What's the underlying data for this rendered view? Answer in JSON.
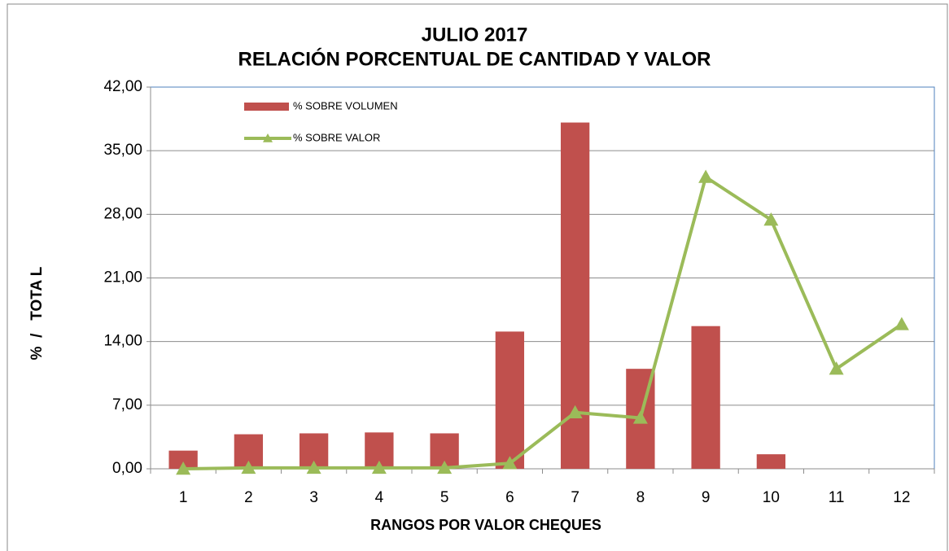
{
  "chart_data": {
    "type": "bar_line",
    "title": "JULIO  2017",
    "subtitle": "RELACIÓN PORCENTUAL DE CANTIDAD Y VALOR",
    "x_label": "RANGOS POR VALOR CHEQUES",
    "y_label": "%  /   TOTA L",
    "categories": [
      "1",
      "2",
      "3",
      "4",
      "5",
      "6",
      "7",
      "8",
      "9",
      "10",
      "11",
      "12"
    ],
    "series": [
      {
        "name": "% SOBRE VOLUMEN",
        "type": "bar",
        "color": "#c0504d",
        "values": [
          2.0,
          3.8,
          3.9,
          4.0,
          3.9,
          15.1,
          38.1,
          11.0,
          15.7,
          1.6,
          0,
          0
        ]
      },
      {
        "name": "% SOBRE VALOR",
        "type": "line",
        "color": "#9bbb59",
        "values": [
          0.0,
          0.1,
          0.1,
          0.1,
          0.1,
          0.6,
          6.2,
          5.6,
          32.1,
          27.4,
          11.0,
          15.9
        ]
      }
    ],
    "ylim": [
      0,
      42
    ],
    "yticks": [
      {
        "value": 0,
        "label": "0,00"
      },
      {
        "value": 7,
        "label": "7,00"
      },
      {
        "value": 14,
        "label": "14,00"
      },
      {
        "value": 21,
        "label": "21,00"
      },
      {
        "value": 28,
        "label": "28,00"
      },
      {
        "value": 35,
        "label": "35,00"
      },
      {
        "value": 42,
        "label": "42,00"
      }
    ],
    "grid": true,
    "legend": "top-left"
  }
}
